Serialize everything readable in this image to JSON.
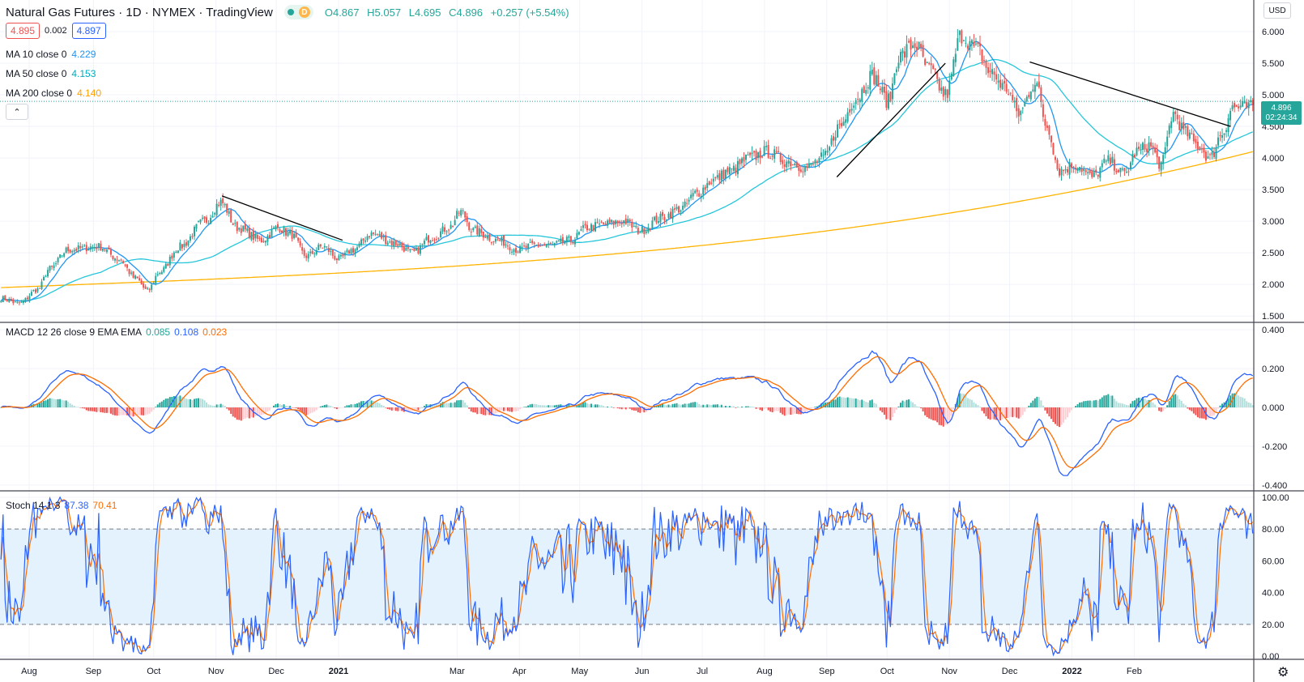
{
  "header": {
    "symbol_title": "Natural Gas Futures · 1D · NYMEX · TradingView",
    "interval_badge": "D",
    "ohlc": {
      "open_label": "O",
      "open": "4.867",
      "high_label": "H",
      "high": "5.057",
      "low_label": "L",
      "low": "4.695",
      "close_label": "C",
      "close": "4.896",
      "change": "+0.257 (+5.54%)"
    }
  },
  "order": {
    "sell": "4.895",
    "spread": "0.002",
    "buy": "4.897"
  },
  "indicators": [
    {
      "label": "MA 10 close 0",
      "value": "4.229",
      "color": "#2196f3"
    },
    {
      "label": "MA 50 close 0",
      "value": "4.153",
      "color": "#26c6da"
    },
    {
      "label": "MA 200 close 0",
      "value": "4.140",
      "color": "#ffb300"
    }
  ],
  "currency": "USD",
  "last_price": {
    "value": "4.896",
    "countdown": "02:24:34"
  },
  "macd": {
    "label": "MACD 12 26 close 9 EMA EMA",
    "hist": "0.085",
    "macd": "0.108",
    "signal": "0.023"
  },
  "stoch": {
    "label": "Stoch 14 1 3",
    "k": "87.38",
    "d": "70.41"
  },
  "colors": {
    "up": "#26a69a",
    "down": "#ef5350",
    "macd": "#2962ff",
    "signal": "#ff6d00",
    "stoch_k": "#2962ff",
    "stoch_d": "#ff6d00",
    "trend": "#000000",
    "band": "#e3f2fd"
  },
  "chart_data": {
    "type": "line",
    "price_axis": {
      "range": [
        1.4,
        6.5
      ],
      "ticks": [
        "1.500",
        "2.000",
        "2.500",
        "3.000",
        "3.500",
        "4.000",
        "4.500",
        "5.000",
        "5.500",
        "6.000"
      ]
    },
    "macd_axis": {
      "range": [
        -0.43,
        0.43
      ],
      "ticks": [
        "0.400",
        "0.200",
        "0.000",
        "-0.200",
        "-0.400"
      ]
    },
    "stoch_axis": {
      "range": [
        -2,
        103
      ],
      "ticks": [
        "100.00",
        "80.00",
        "60.00",
        "40.00",
        "20.00",
        "0.00"
      ]
    },
    "time_labels": [
      {
        "label": "Aug",
        "day": 14,
        "bold": false
      },
      {
        "label": "Sep",
        "day": 46,
        "bold": false
      },
      {
        "label": "Oct",
        "day": 76,
        "bold": false
      },
      {
        "label": "Nov",
        "day": 107,
        "bold": false
      },
      {
        "label": "Dec",
        "day": 137,
        "bold": false
      },
      {
        "label": "2021",
        "day": 168,
        "bold": true
      },
      {
        "label": "Mar",
        "day": 227,
        "bold": false
      },
      {
        "label": "Apr",
        "day": 258,
        "bold": false
      },
      {
        "label": "May",
        "day": 288,
        "bold": false
      },
      {
        "label": "Jun",
        "day": 319,
        "bold": false
      },
      {
        "label": "Jul",
        "day": 349,
        "bold": false
      },
      {
        "label": "Aug",
        "day": 380,
        "bold": false
      },
      {
        "label": "Sep",
        "day": 411,
        "bold": false
      },
      {
        "label": "Oct",
        "day": 441,
        "bold": false
      },
      {
        "label": "Nov",
        "day": 472,
        "bold": false
      },
      {
        "label": "Dec",
        "day": 502,
        "bold": false
      },
      {
        "label": "2022",
        "day": 533,
        "bold": true
      },
      {
        "label": "Feb",
        "day": 564,
        "bold": false
      }
    ],
    "close_anchors": [
      [
        0,
        1.78
      ],
      [
        9,
        1.7
      ],
      [
        18,
        1.92
      ],
      [
        24,
        2.25
      ],
      [
        33,
        2.55
      ],
      [
        48,
        2.6
      ],
      [
        58,
        2.4
      ],
      [
        66,
        2.1
      ],
      [
        72,
        1.9
      ],
      [
        78,
        2.2
      ],
      [
        88,
        2.6
      ],
      [
        100,
        3.0
      ],
      [
        108,
        3.3
      ],
      [
        116,
        2.9
      ],
      [
        128,
        2.7
      ],
      [
        136,
        2.9
      ],
      [
        142,
        2.8
      ],
      [
        150,
        2.45
      ],
      [
        158,
        2.6
      ],
      [
        166,
        2.4
      ],
      [
        173,
        2.55
      ],
      [
        182,
        2.8
      ],
      [
        194,
        2.65
      ],
      [
        202,
        2.5
      ],
      [
        212,
        2.75
      ],
      [
        220,
        2.9
      ],
      [
        226,
        3.15
      ],
      [
        232,
        2.85
      ],
      [
        244,
        2.7
      ],
      [
        254,
        2.55
      ],
      [
        262,
        2.62
      ],
      [
        270,
        2.62
      ],
      [
        280,
        2.7
      ],
      [
        288,
        2.9
      ],
      [
        296,
        2.95
      ],
      [
        306,
        3.0
      ],
      [
        314,
        2.85
      ],
      [
        324,
        3.05
      ],
      [
        334,
        3.2
      ],
      [
        342,
        3.45
      ],
      [
        350,
        3.65
      ],
      [
        358,
        3.8
      ],
      [
        368,
        4.0
      ],
      [
        376,
        4.1
      ],
      [
        386,
        3.95
      ],
      [
        396,
        3.85
      ],
      [
        404,
        4.0
      ],
      [
        412,
        4.5
      ],
      [
        420,
        4.95
      ],
      [
        428,
        5.3
      ],
      [
        436,
        4.9
      ],
      [
        441,
        5.6
      ],
      [
        449,
        5.8
      ],
      [
        456,
        5.4
      ],
      [
        464,
        5.0
      ],
      [
        472,
        5.95
      ],
      [
        480,
        5.7
      ],
      [
        486,
        5.35
      ],
      [
        494,
        5.1
      ],
      [
        500,
        4.7
      ],
      [
        508,
        5.2
      ],
      [
        514,
        4.5
      ],
      [
        520,
        3.8
      ],
      [
        528,
        3.9
      ],
      [
        536,
        3.7
      ],
      [
        544,
        3.95
      ],
      [
        552,
        3.75
      ],
      [
        558,
        4.1
      ],
      [
        564,
        4.2
      ],
      [
        570,
        3.9
      ],
      [
        576,
        4.7
      ],
      [
        582,
        4.4
      ],
      [
        588,
        4.2
      ],
      [
        594,
        4.0
      ],
      [
        600,
        4.4
      ],
      [
        605,
        4.8
      ]
    ],
    "trendlines": [
      {
        "from": [
          110,
          3.4
        ],
        "to": [
          170,
          2.7
        ]
      },
      {
        "from": [
          416,
          3.7
        ],
        "to": [
          470,
          5.5
        ]
      },
      {
        "from": [
          512,
          5.52
        ],
        "to": [
          612,
          4.5
        ]
      }
    ]
  }
}
